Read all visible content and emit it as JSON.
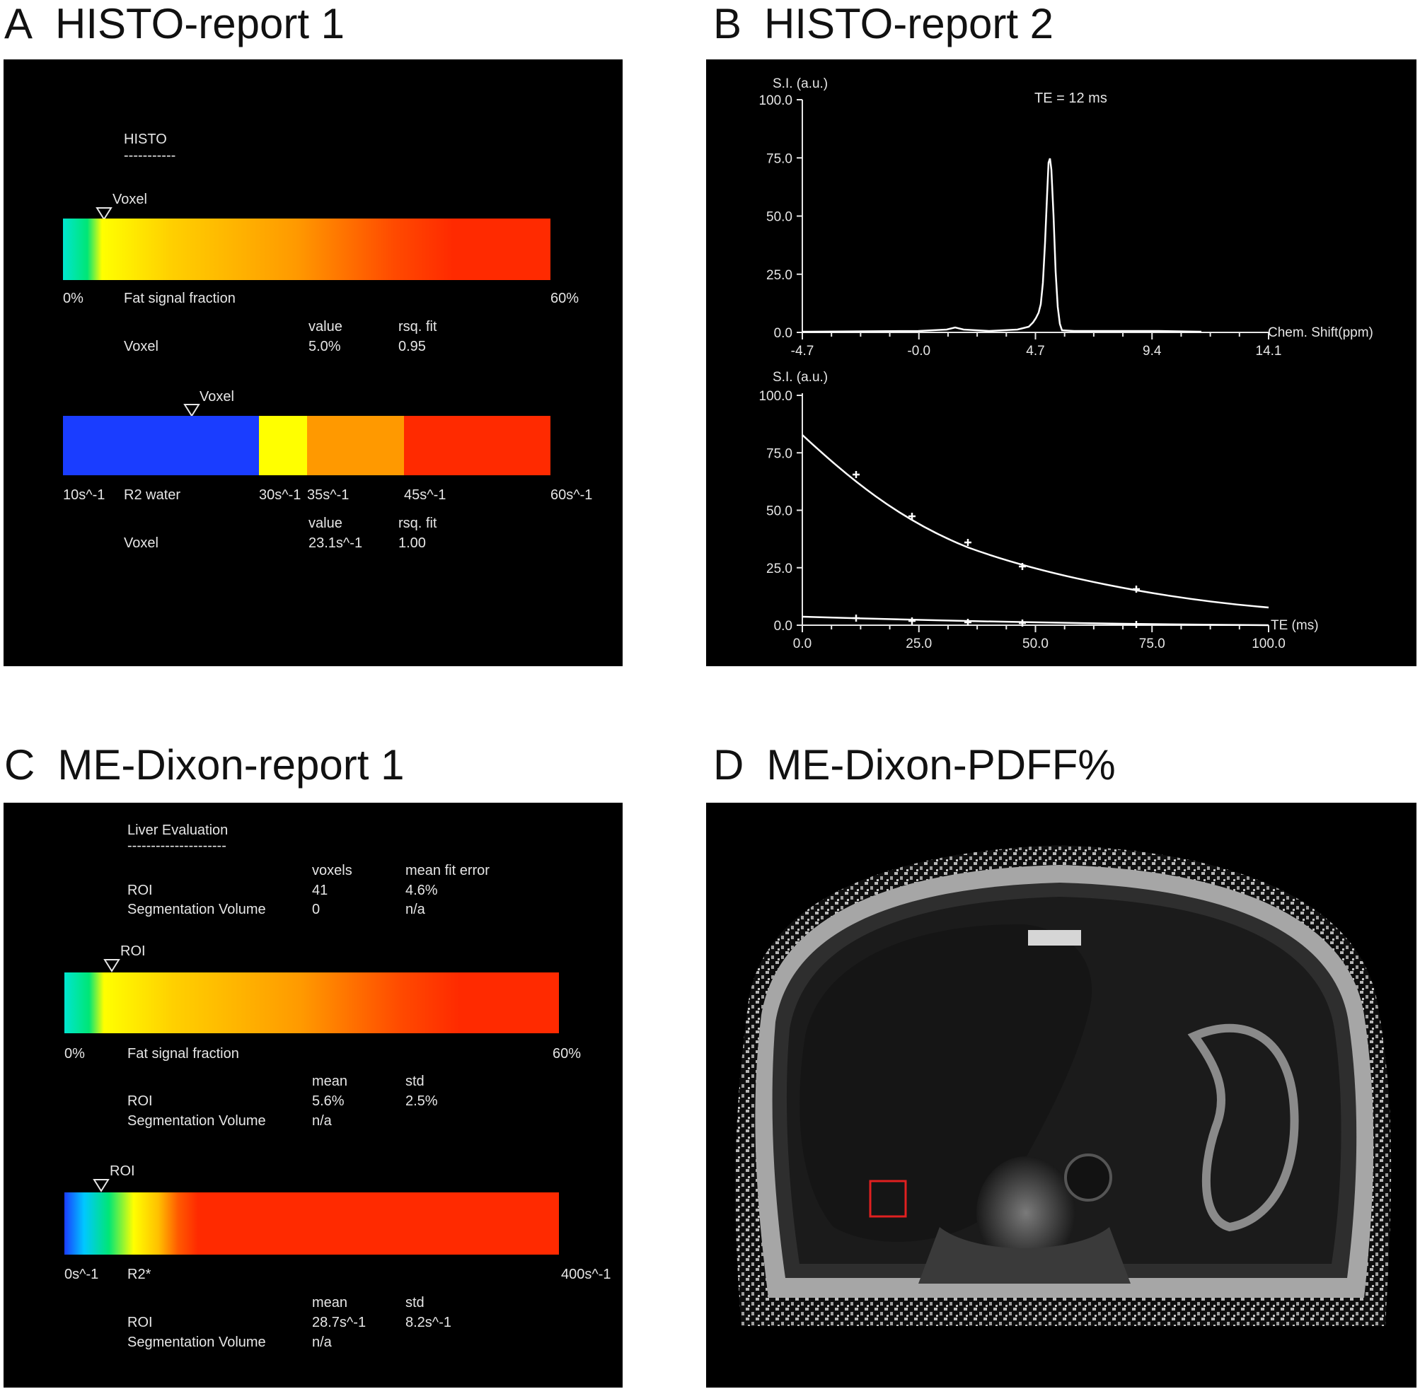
{
  "panels": {
    "A": {
      "letter": "A",
      "title": "HISTO-report 1",
      "heading": "HISTO",
      "rule": "-----------",
      "fsf": {
        "marker_label": "Voxel",
        "marker_value_pct": 5.0,
        "min_label": "0%",
        "name_label": "Fat signal fraction",
        "max_label": "60%",
        "col1": "value",
        "col2": "rsq. fit",
        "row_label": "Voxel",
        "row_value": "5.0%",
        "row_rsq": "0.95"
      },
      "r2": {
        "marker_label": "Voxel",
        "marker_value": 23.1,
        "labels": [
          "10s^-1",
          "R2 water",
          "30s^-1",
          "35s^-1",
          "45s^-1",
          "60s^-1"
        ],
        "col1": "value",
        "col2": "rsq. fit",
        "row_label": "Voxel",
        "row_value": "23.1s^-1",
        "row_rsq": "1.00"
      }
    },
    "B": {
      "letter": "B",
      "title": "HISTO-report 2",
      "spectrum": {
        "ylabel": "S.I. (a.u.)",
        "annotation": "TE = 12 ms",
        "yticks": [
          "100.0",
          "75.0",
          "50.0",
          "25.0",
          "0.0"
        ],
        "xticks": [
          "-4.7",
          "-0.0",
          "4.7",
          "9.4",
          "14.1"
        ],
        "xlabel": "Chem. Shift(ppm)"
      },
      "decay": {
        "ylabel": "S.I. (a.u.)",
        "yticks": [
          "100.0",
          "75.0",
          "50.0",
          "25.0",
          "0.0"
        ],
        "xticks": [
          "0.0",
          "25.0",
          "50.0",
          "75.0",
          "100.0"
        ],
        "xlabel": "TE (ms)"
      }
    },
    "C": {
      "letter": "C",
      "title": "ME-Dixon-report 1",
      "heading": "Liver Evaluation",
      "rule": "---------------------",
      "top": {
        "col1": "voxels",
        "col2": "mean fit error",
        "r1": [
          "ROI",
          "41",
          "4.6%"
        ],
        "r2": [
          "Segmentation Volume",
          "0",
          "n/a"
        ]
      },
      "fsf": {
        "marker_label": "ROI",
        "marker_value_pct": 5.6,
        "min_label": "0%",
        "name_label": "Fat signal fraction",
        "max_label": "60%",
        "col1": "mean",
        "col2": "std",
        "r1": [
          "ROI",
          "5.6%",
          "2.5%"
        ],
        "r2": [
          "Segmentation Volume",
          "n/a"
        ]
      },
      "r2s": {
        "marker_label": "ROI",
        "marker_value": 28.7,
        "min_label": "0s^-1",
        "name_label": "R2*",
        "max_label": "400s^-1",
        "col1": "mean",
        "col2": "std",
        "r1": [
          "ROI",
          "28.7s^-1",
          "8.2s^-1"
        ],
        "r2": [
          "Segmentation Volume",
          "n/a"
        ]
      }
    },
    "D": {
      "letter": "D",
      "title": "ME-Dixon-PDFF%"
    }
  },
  "colors": {
    "roi_box": "#e02020",
    "bar_red": "#ff2a00",
    "r2_blue": "#1a3dff",
    "r2_yellow": "#ffff00",
    "r2_orange": "#ff9900"
  }
}
